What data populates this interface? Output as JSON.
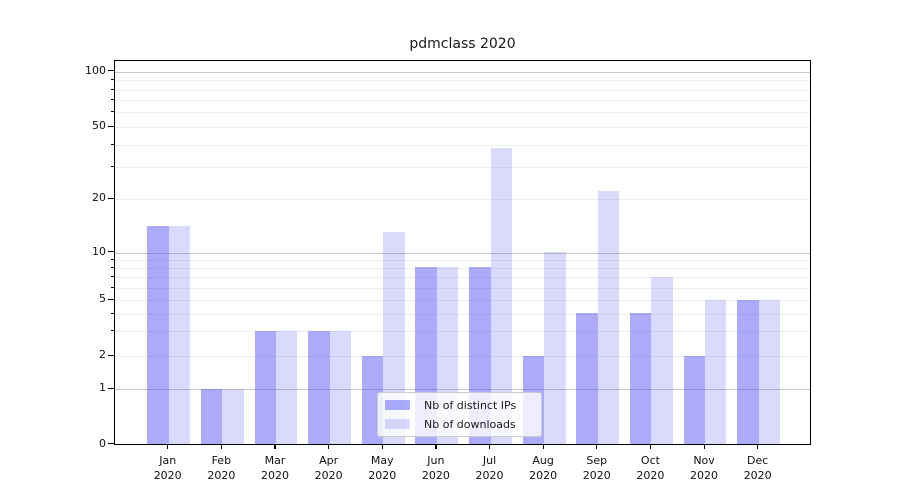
{
  "title": "pdmclass 2020",
  "legend": {
    "items": [
      {
        "label": "Nb of distinct IPs",
        "color": "rgba(87,87,245,0.50)"
      },
      {
        "label": "Nb of downloads",
        "color": "rgba(87,87,245,0.22)"
      }
    ]
  },
  "colors": {
    "bar_distinct_ips": "rgba(87,87,245,0.50)",
    "bar_downloads": "rgba(87,87,245,0.22)",
    "grid_major": "#c6c6c6",
    "grid_minor": "#ededed",
    "spine": "#000000",
    "text": "#1a1a1a"
  },
  "chart_data": {
    "type": "bar",
    "title": "pdmclass 2020",
    "months": [
      "Jan",
      "Feb",
      "Mar",
      "Apr",
      "May",
      "Jun",
      "Jul",
      "Aug",
      "Sep",
      "Oct",
      "Nov",
      "Dec"
    ],
    "year": "2020",
    "categories": [
      "Jan 2020",
      "Feb 2020",
      "Mar 2020",
      "Apr 2020",
      "May 2020",
      "Jun 2020",
      "Jul 2020",
      "Aug 2020",
      "Sep 2020",
      "Oct 2020",
      "Nov 2020",
      "Dec 2020"
    ],
    "series": [
      {
        "name": "Nb of distinct IPs",
        "values": [
          14,
          1,
          3,
          3,
          2,
          8,
          8,
          2,
          4,
          4,
          2,
          5
        ]
      },
      {
        "name": "Nb of downloads",
        "values": [
          14,
          1,
          3,
          3,
          13,
          8,
          38,
          10,
          22,
          7,
          5,
          5
        ]
      }
    ],
    "yscale": "symlog",
    "y_tick_values": [
      0,
      1,
      2,
      5,
      10,
      20,
      50,
      100
    ],
    "y_tick_labels": [
      "0",
      "1",
      "2",
      "5",
      "10",
      "20",
      "50",
      "100"
    ],
    "y_major_grid_values": [
      1,
      10,
      100
    ],
    "y_minor_grid_values": [
      2,
      3,
      4,
      5,
      6,
      7,
      8,
      9,
      20,
      30,
      40,
      50,
      60,
      70,
      80,
      90
    ],
    "ylim": [
      0,
      115
    ],
    "grid": true,
    "legend_position": "lower center",
    "xlabel": "",
    "ylabel": ""
  }
}
